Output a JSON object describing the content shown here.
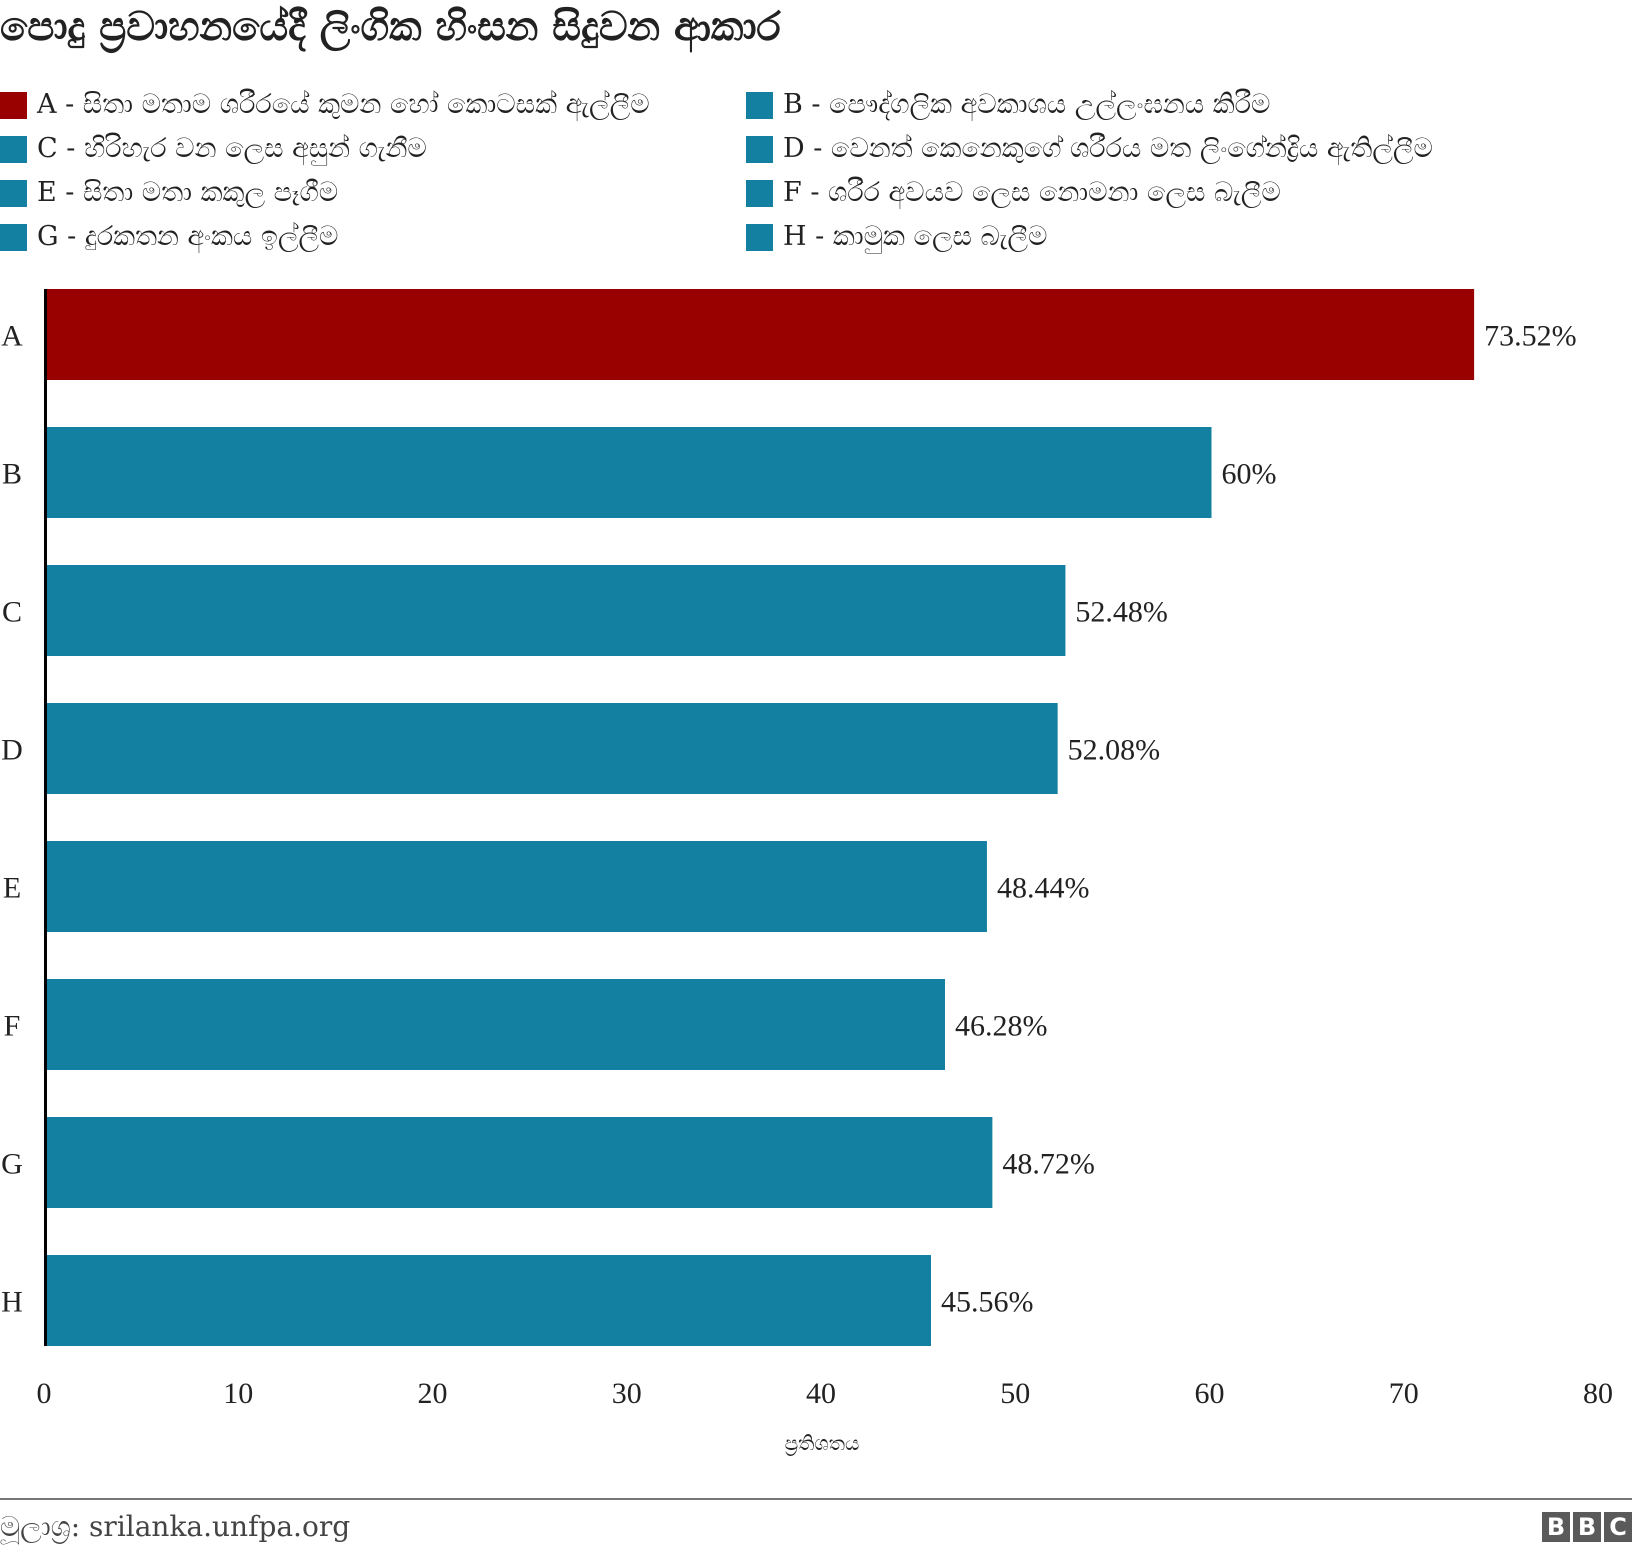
{
  "title": "පොදු ප්‍රවාහනයේදී ලිංගික හිංසන සිදුවන ආකාර",
  "colors": {
    "highlight": "#990000",
    "default": "#1380A1",
    "axis": "#000000",
    "text": "#222222"
  },
  "legend": [
    {
      "key": "A",
      "label": "A - සිතා මතාම ශරීරයේ කුමන හෝ කොටසක් ඇල්ලීම",
      "color": "#990000"
    },
    {
      "key": "B",
      "label": "B - පෞද්ගලික අවකාශය උල්ලංඝනය කිරීම",
      "color": "#1380A1"
    },
    {
      "key": "C",
      "label": "C - හිරිහැර වන ලෙස අසුන් ගැනීම",
      "color": "#1380A1"
    },
    {
      "key": "D",
      "label": "D - වෙනත් කෙනෙකුගේ ශරීරය මත ලිංගේන්ද්‍රිය ඇතිල්ලීම",
      "color": "#1380A1"
    },
    {
      "key": "E",
      "label": "E - සිතා මතා කකුල පෑගීම",
      "color": "#1380A1"
    },
    {
      "key": "F",
      "label": "F - ශරීර අවයව ලෙස නොමනා ලෙස බැලීම",
      "color": "#1380A1"
    },
    {
      "key": "G",
      "label": "G - දුරකතන අංකය ඉල්ලීම",
      "color": "#1380A1"
    },
    {
      "key": "H",
      "label": "H - කාමුක ලෙස බැලීම",
      "color": "#1380A1"
    }
  ],
  "chart_data": {
    "type": "bar",
    "orientation": "horizontal",
    "title": "පොදු ප්‍රවාහනයේදී ලිංගික හිංසන සිදුවන ආකාර",
    "categories": [
      "A",
      "B",
      "C",
      "D",
      "E",
      "F",
      "G",
      "H"
    ],
    "values": [
      73.52,
      60,
      52.48,
      52.08,
      48.44,
      46.28,
      48.72,
      45.56
    ],
    "value_labels": [
      "73.52%",
      "60%",
      "52.48%",
      "52.08%",
      "48.44%",
      "46.28%",
      "48.72%",
      "45.56%"
    ],
    "xlabel": "ප්‍රතිශතය",
    "ylabel": "",
    "xlim": [
      0,
      80
    ],
    "xticks": [
      0,
      10,
      20,
      30,
      40,
      50,
      60,
      70,
      80
    ],
    "grid": false,
    "legend_position": "top"
  },
  "footer": {
    "source": "මූලාශ්‍ර: srilanka.unfpa.org",
    "logo": "BBC",
    "logo_letters": [
      "B",
      "B",
      "C"
    ]
  }
}
